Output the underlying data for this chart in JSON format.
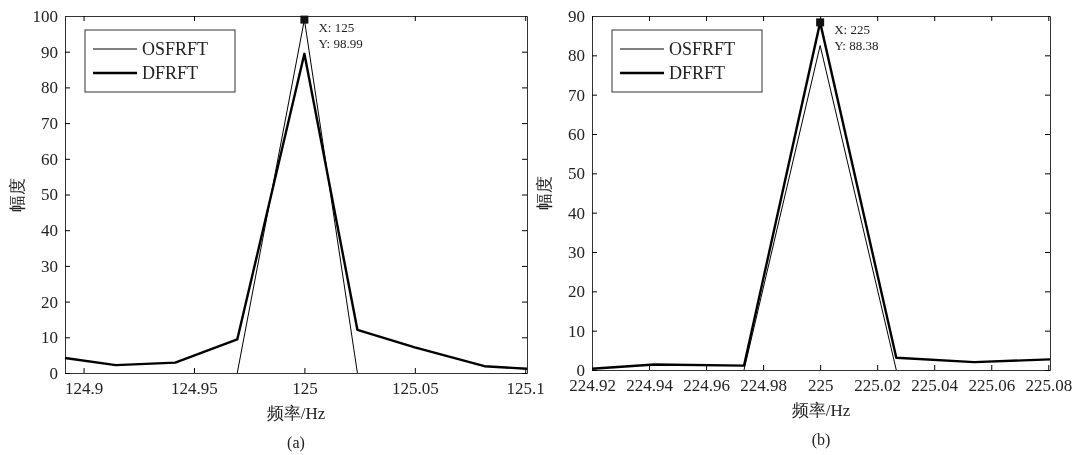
{
  "chart_data": [
    {
      "type": "line",
      "xlabel": "频率/Hz",
      "ylabel": "幅度",
      "xlim": [
        124.8916,
        125.1008
      ],
      "ylim": [
        0,
        100
      ],
      "xticks": [
        124.9,
        124.95,
        125,
        125.05,
        125.1
      ],
      "yticks": [
        0,
        10,
        20,
        30,
        40,
        50,
        60,
        70,
        80,
        90,
        100
      ],
      "legend": "top left",
      "grid": false,
      "series": [
        {
          "name": "OSFRFT",
          "color": "#000000",
          "x": [
            124.9696,
            125,
            125.024
          ],
          "values": [
            0,
            98.99,
            0
          ]
        },
        {
          "name": "DFRFT",
          "color": "#000000",
          "x": [
            124.8916,
            124.9146,
            124.9415,
            124.9696,
            125,
            125.024,
            125.05,
            125.0815,
            125.1008
          ],
          "values": [
            4.2,
            2.2,
            2.9,
            9.4,
            89.4,
            12.1,
            7.2,
            1.9,
            1.2
          ]
        }
      ],
      "annotations": [
        {
          "text": "X: 125\nY: 98.99",
          "x": 125,
          "y": 98.99
        },
        "(a)"
      ]
    },
    {
      "type": "line",
      "xlabel": "频率/Hz",
      "ylabel": "幅度",
      "xlim": [
        224.92,
        225.0806
      ],
      "ylim": [
        0,
        90
      ],
      "xticks": [
        224.92,
        224.94,
        224.96,
        224.98,
        225,
        225.02,
        225.04,
        225.06,
        225.08
      ],
      "yticks": [
        0,
        10,
        20,
        30,
        40,
        50,
        60,
        70,
        80,
        90
      ],
      "legend": "top left",
      "grid": false,
      "series": [
        {
          "name": "OSFRFT",
          "color": "#000000",
          "x": [
            224.9733,
            225,
            225.0267
          ],
          "values": [
            0,
            82.5,
            0
          ]
        },
        {
          "name": "DFRFT",
          "color": "#000000",
          "x": [
            224.92,
            224.9418,
            224.9733,
            225,
            225.0267,
            225.054,
            225.0806
          ],
          "values": [
            0.3,
            1.4,
            1.1,
            88.38,
            3.1,
            2.0,
            2.7
          ]
        }
      ],
      "annotations": [
        {
          "text": "X: 225\nY: 88.38",
          "x": 225,
          "y": 88.38
        },
        "(b)"
      ]
    }
  ]
}
